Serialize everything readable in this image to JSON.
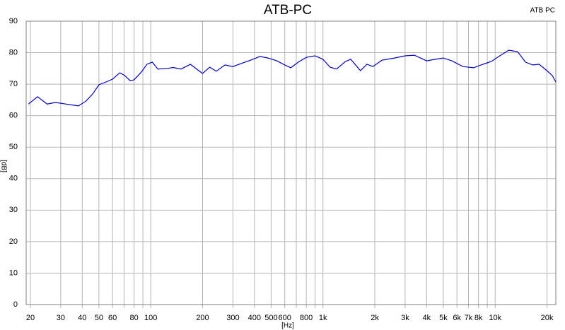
{
  "chart_data": {
    "type": "line",
    "title": "ATB-PC",
    "corner_label": "ATB PC",
    "x_label": "[Hz]",
    "y_label": "[dB]",
    "log_x": true,
    "grid": true,
    "xlim": [
      18.9,
      22500
    ],
    "ylim": [
      0,
      90
    ],
    "yticks": [
      0,
      10,
      20,
      30,
      40,
      50,
      60,
      70,
      80,
      90
    ],
    "xticks": [
      20,
      30,
      40,
      50,
      60,
      80,
      100,
      200,
      300,
      400,
      500,
      600,
      800,
      {
        "value": 1000,
        "label": "1k"
      },
      {
        "value": 2000,
        "label": "2k"
      },
      {
        "value": 3000,
        "label": "3k"
      },
      {
        "value": 4000,
        "label": "4k"
      },
      {
        "value": 5000,
        "label": "5k"
      },
      {
        "value": 6000,
        "label": "6k"
      },
      {
        "value": 7000,
        "label": "7k"
      },
      {
        "value": 8000,
        "label": "8k"
      },
      {
        "value": 10000,
        "label": "10k"
      },
      {
        "value": 20000,
        "label": "20k"
      }
    ],
    "xminor": [
      70,
      90,
      700,
      900,
      9000
    ],
    "x": [
      19.5,
      22,
      25,
      28,
      32,
      36,
      38,
      42,
      46,
      50,
      55,
      60,
      66,
      70,
      76,
      80,
      88,
      95,
      102,
      110,
      125,
      135,
      150,
      170,
      190,
      200,
      220,
      240,
      270,
      300,
      340,
      380,
      430,
      480,
      540,
      600,
      650,
      720,
      800,
      900,
      1000,
      1100,
      1200,
      1350,
      1450,
      1650,
      1800,
      1950,
      2200,
      2600,
      3000,
      3400,
      4000,
      4500,
      5000,
      5600,
      6500,
      7500,
      8500,
      9500,
      10500,
      12000,
      13500,
      15000,
      16500,
      18000,
      20000,
      21500,
      22500
    ],
    "series": [
      {
        "name": "ATB-PC",
        "color": "#0000c8",
        "values": [
          63.7,
          66.0,
          63.7,
          64.2,
          63.7,
          63.3,
          63.1,
          64.6,
          66.9,
          69.8,
          70.7,
          71.6,
          73.6,
          72.9,
          71.1,
          71.4,
          73.8,
          76.3,
          77.0,
          74.8,
          75.0,
          75.3,
          74.8,
          76.3,
          74.3,
          73.4,
          75.4,
          74.1,
          76.1,
          75.6,
          76.7,
          77.6,
          78.8,
          78.3,
          77.4,
          76.1,
          75.2,
          77.0,
          78.5,
          79.0,
          77.9,
          75.4,
          74.8,
          77.2,
          77.9,
          74.3,
          76.3,
          75.6,
          77.6,
          78.3,
          79.0,
          79.2,
          77.4,
          77.9,
          78.3,
          77.4,
          75.6,
          75.2,
          76.3,
          77.2,
          78.8,
          80.8,
          80.3,
          77.0,
          76.1,
          76.3,
          74.3,
          72.7,
          70.7
        ]
      }
    ]
  }
}
